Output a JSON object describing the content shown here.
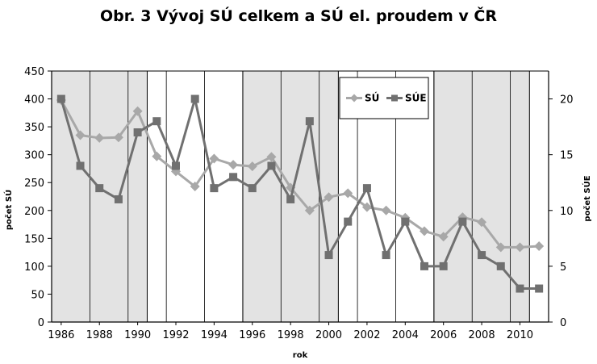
{
  "title": "Obr. 3  Vývoj SÚ celkem a SÚ el. proudem v ČR",
  "chart_data": {
    "type": "line",
    "x": [
      1986,
      1987,
      1988,
      1989,
      1990,
      1991,
      1992,
      1993,
      1994,
      1995,
      1996,
      1997,
      1998,
      1999,
      2000,
      2001,
      2002,
      2003,
      2004,
      2005,
      2006,
      2007,
      2008,
      2009,
      2010,
      2011
    ],
    "xticks": [
      "1986",
      "1988",
      "1990",
      "1992",
      "1994",
      "1996",
      "1998",
      "2000",
      "2002",
      "2004",
      "2006",
      "2008",
      "2010"
    ],
    "xlabel": "rok",
    "ylabel": "počet SÚ",
    "y2label": "počet SÚE",
    "ylim": [
      0,
      450
    ],
    "y2lim": [
      0,
      22.5
    ],
    "yticks": [
      "0",
      "50",
      "100",
      "150",
      "200",
      "250",
      "300",
      "350",
      "400",
      "450"
    ],
    "y2ticks": [
      "0",
      "5",
      "10",
      "15",
      "20"
    ],
    "shaded_ranges": [
      [
        1985.5,
        1990.5
      ],
      [
        1995.5,
        2000.5
      ],
      [
        2005.5,
        2010.5
      ]
    ],
    "grid": "vertical",
    "legend": "top-right",
    "series": [
      {
        "name": "SÚ",
        "axis": "left",
        "color": "#a8a8a8",
        "marker": "diamond",
        "values": [
          398,
          335,
          330,
          331,
          378,
          297,
          270,
          243,
          293,
          282,
          279,
          296,
          241,
          200,
          224,
          231,
          206,
          200,
          187,
          163,
          153,
          188,
          179,
          134,
          134,
          136
        ]
      },
      {
        "name": "SÚE",
        "axis": "right",
        "color": "#707070",
        "marker": "square",
        "values": [
          20,
          14,
          12,
          11,
          17,
          18,
          14,
          20,
          12,
          13,
          12,
          14,
          11,
          18,
          6,
          9,
          12,
          6,
          9,
          5,
          5,
          9,
          6,
          5,
          3,
          3
        ]
      }
    ]
  }
}
